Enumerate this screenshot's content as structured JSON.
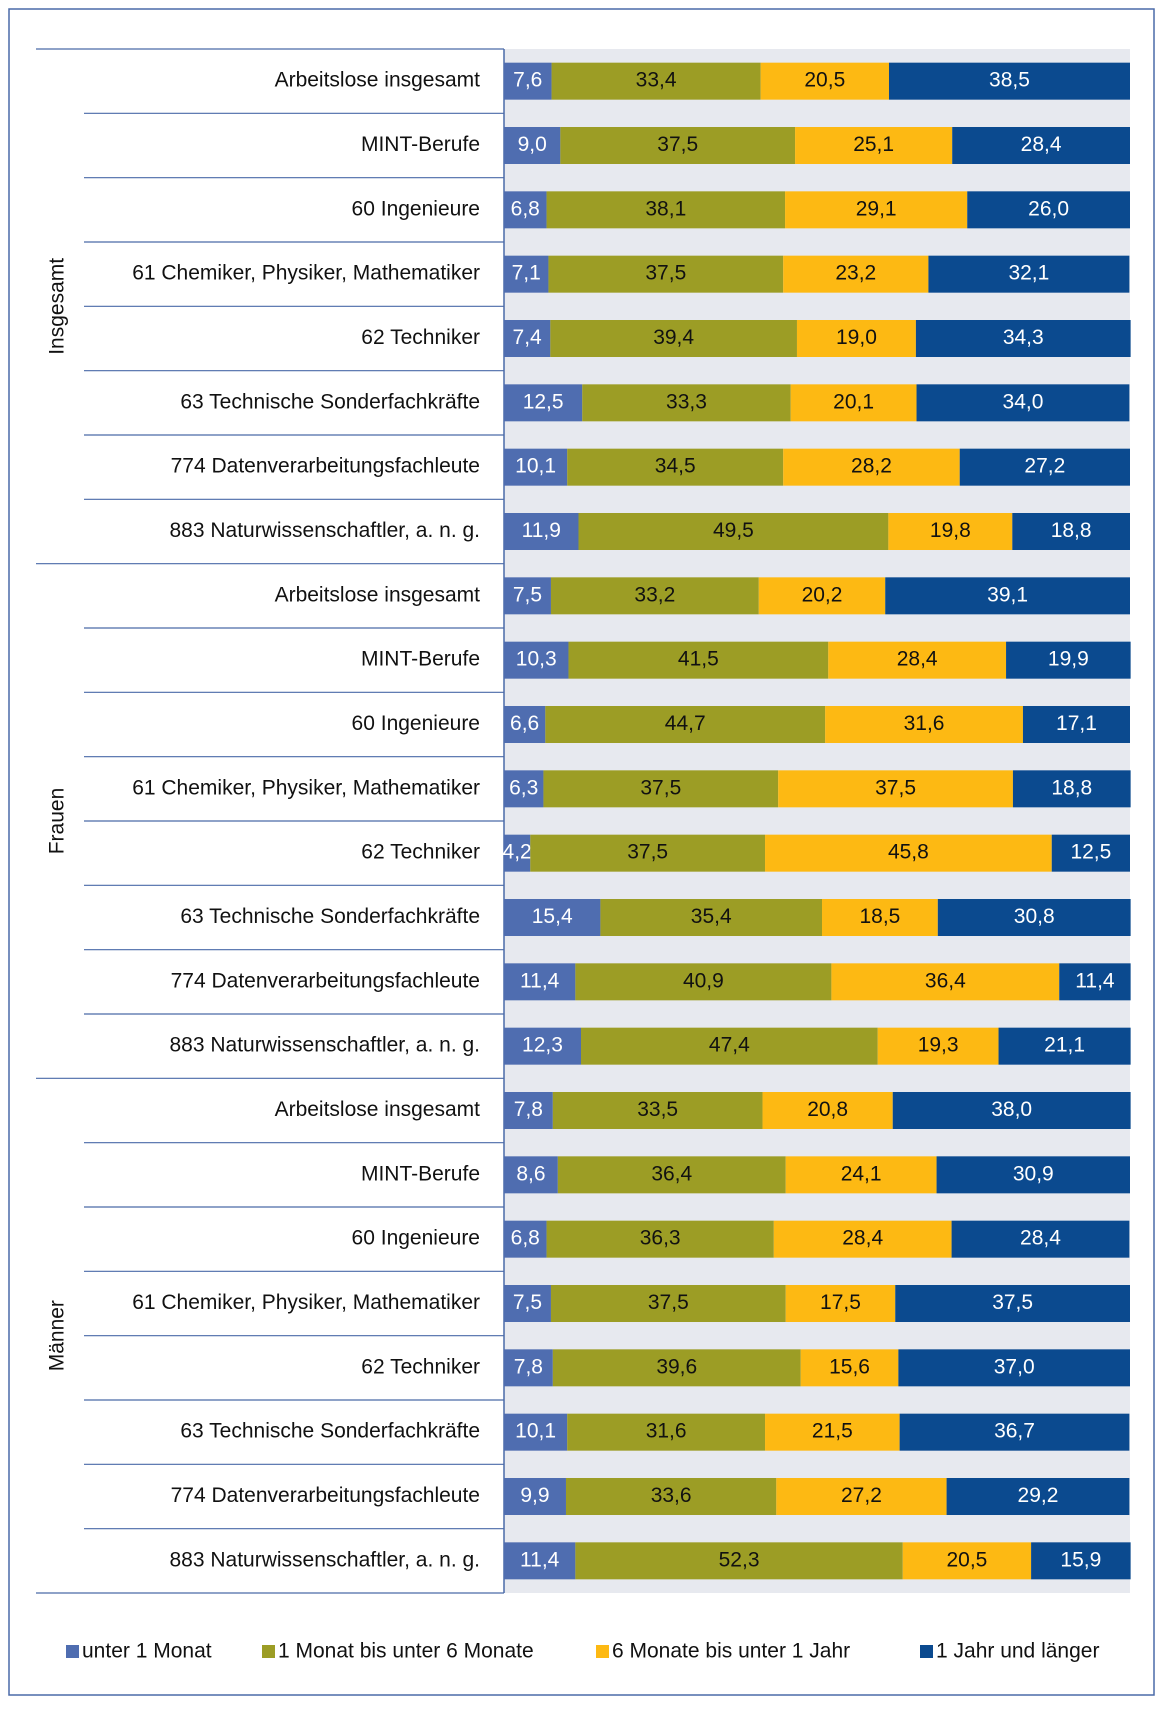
{
  "chart_data": {
    "type": "stacked-bar-horizontal",
    "groups": [
      "Insgesamt",
      "Frauen",
      "Männer"
    ],
    "categories": [
      "Arbeitslose insgesamt",
      "MINT-Berufe",
      "60 Ingenieure",
      "61 Chemiker,  Physiker,  Mathematiker",
      "62 Techniker",
      "63 Technische Sonderfachkräfte",
      "774 Datenverarbeitungsfachleute",
      "883 Naturwissenschaftler,  a. n. g.",
      "Arbeitslose insgesamt",
      "MINT-Berufe",
      "60 Ingenieure",
      "61 Chemiker,  Physiker,  Mathematiker",
      "62 Techniker",
      "63 Technische Sonderfachkräfte",
      "774 Datenverarbeitungsfachleute",
      "883 Naturwissenschaftler,  a. n. g.",
      "Arbeitslose insgesamt",
      "MINT-Berufe",
      "60 Ingenieure",
      "61 Chemiker,  Physiker,  Mathematiker",
      "62 Techniker",
      "63 Technische Sonderfachkräfte",
      "774 Datenverarbeitungsfachleute",
      "883 Naturwissenschaftler,  a. n. g."
    ],
    "xlim": [
      0,
      100
    ],
    "series": [
      {
        "name": "unter 1 Monat",
        "color": "#4f6db0",
        "values": [
          7.6,
          9.0,
          6.8,
          7.1,
          7.4,
          12.5,
          10.1,
          11.9,
          7.5,
          10.3,
          6.6,
          6.3,
          4.2,
          15.4,
          11.4,
          12.3,
          7.8,
          8.6,
          6.8,
          7.5,
          7.8,
          10.1,
          9.9,
          11.4
        ],
        "value_labels": [
          "7,6",
          "9,0",
          "6,8",
          "7,1",
          "7,4",
          "12,5",
          "10,1",
          "11,9",
          "7,5",
          "10,3",
          "6,6",
          "6,3",
          "4,2",
          "15,4",
          "11,4",
          "12,3",
          "7,8",
          "8,6",
          "6,8",
          "7,5",
          "7,8",
          "10,1",
          "9,9",
          "11,4"
        ]
      },
      {
        "name": "1 Monat bis unter 6 Monate",
        "color": "#9c9d25",
        "values": [
          33.4,
          37.5,
          38.1,
          37.5,
          39.4,
          33.3,
          34.5,
          49.5,
          33.2,
          41.5,
          44.7,
          37.5,
          37.5,
          35.4,
          40.9,
          47.4,
          33.5,
          36.4,
          36.3,
          37.5,
          39.6,
          31.6,
          33.6,
          52.3
        ],
        "value_labels": [
          "33,4",
          "37,5",
          "38,1",
          "37,5",
          "39,4",
          "33,3",
          "34,5",
          "49,5",
          "33,2",
          "41,5",
          "44,7",
          "37,5",
          "37,5",
          "35,4",
          "40,9",
          "47,4",
          "33,5",
          "36,4",
          "36,3",
          "37,5",
          "39,6",
          "31,6",
          "33,6",
          "52,3"
        ]
      },
      {
        "name": "6 Monate bis unter 1 Jahr",
        "color": "#fdb913",
        "values": [
          20.5,
          25.1,
          29.1,
          23.2,
          19.0,
          20.1,
          28.2,
          19.8,
          20.2,
          28.4,
          31.6,
          37.5,
          45.8,
          18.5,
          36.4,
          19.3,
          20.8,
          24.1,
          28.4,
          17.5,
          15.6,
          21.5,
          27.2,
          20.5
        ],
        "value_labels": [
          "20,5",
          "25,1",
          "29,1",
          "23,2",
          "19,0",
          "20,1",
          "28,2",
          "19,8",
          "20,2",
          "28,4",
          "31,6",
          "37,5",
          "45,8",
          "18,5",
          "36,4",
          "19,3",
          "20,8",
          "24,1",
          "28,4",
          "17,5",
          "15,6",
          "21,5",
          "27,2",
          "20,5"
        ]
      },
      {
        "name": "1 Jahr und länger",
        "color": "#0b4a8f",
        "values": [
          38.5,
          28.4,
          26.0,
          32.1,
          34.3,
          34.0,
          27.2,
          18.8,
          39.1,
          19.9,
          17.1,
          18.8,
          12.5,
          30.8,
          11.4,
          21.1,
          38.0,
          30.9,
          28.4,
          37.5,
          37.0,
          36.7,
          29.2,
          15.9
        ],
        "value_labels": [
          "38,5",
          "28,4",
          "26,0",
          "32,1",
          "34,3",
          "34,0",
          "27,2",
          "18,8",
          "39,1",
          "19,9",
          "17,1",
          "18,8",
          "12,5",
          "30,8",
          "11,4",
          "21,1",
          "38,0",
          "30,9",
          "28,4",
          "37,5",
          "37,0",
          "36,7",
          "29,2",
          "15,9"
        ]
      }
    ]
  }
}
